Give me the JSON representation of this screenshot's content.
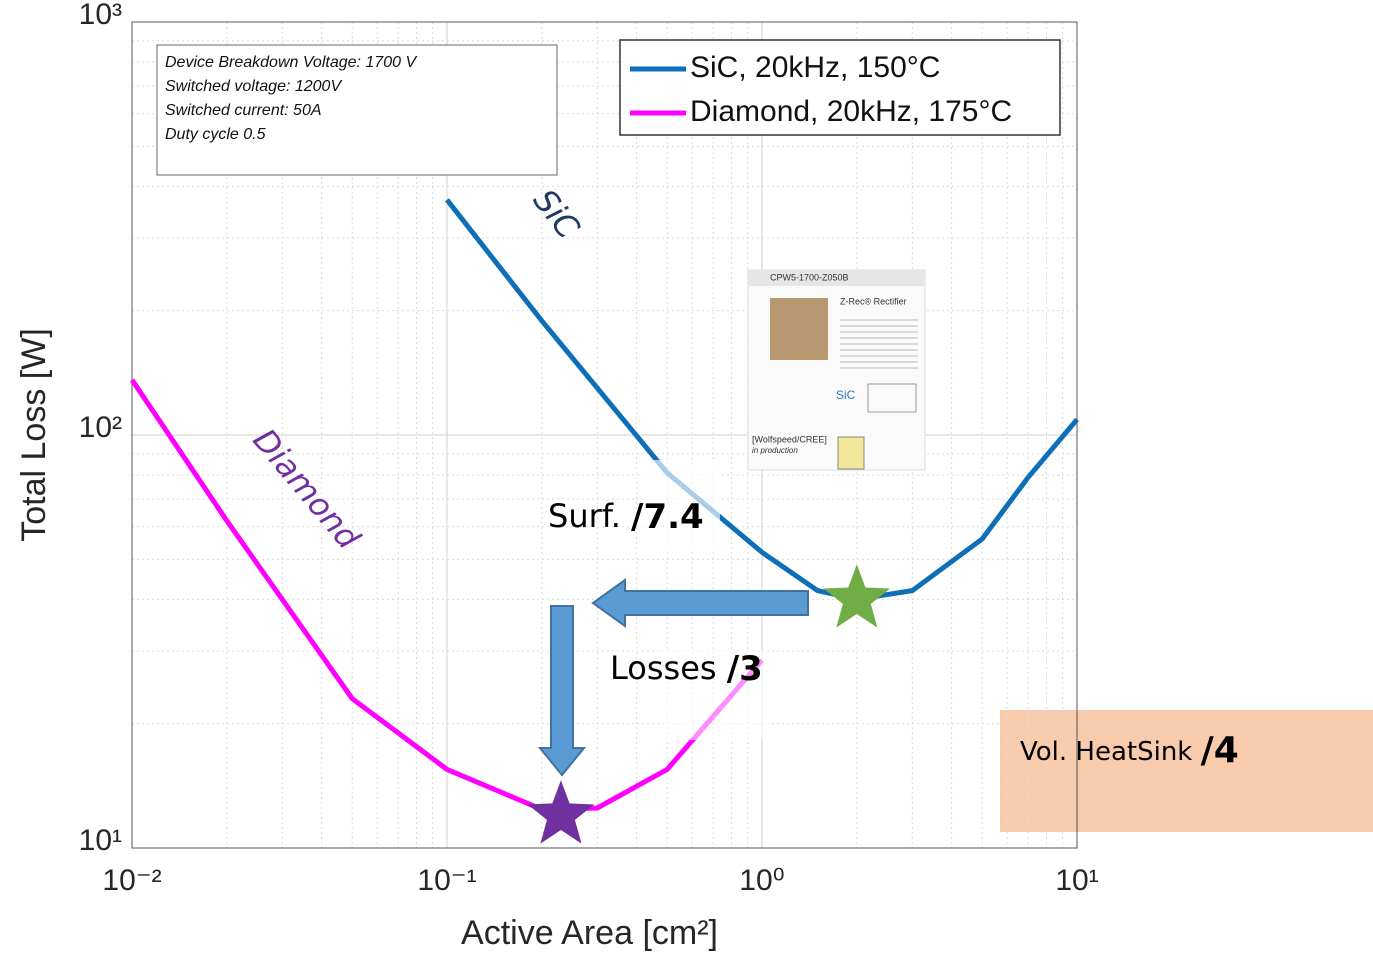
{
  "chart_data": {
    "type": "line",
    "xlabel": "Active Area [cm²]",
    "ylabel": "Total Loss [W]",
    "log_x": true,
    "log_y": true,
    "grid": true,
    "xlim": [
      0.01,
      10
    ],
    "ylim": [
      10,
      1000
    ],
    "xticks": [
      {
        "value": 0.01,
        "label": "10⁻²"
      },
      {
        "value": 0.1,
        "label": "10⁻¹"
      },
      {
        "value": 1,
        "label": "10⁰"
      },
      {
        "value": 10,
        "label": "10¹"
      }
    ],
    "yticks": [
      {
        "value": 10,
        "label": "10¹"
      },
      {
        "value": 100,
        "label": "10²"
      },
      {
        "value": 1000,
        "label": "10³"
      }
    ],
    "legend_position": "upper right",
    "series": [
      {
        "name": "SiC, 20kHz, 150°C",
        "color": "#0e6eb8",
        "x": [
          0.1,
          0.2,
          0.5,
          1,
          1.5,
          2,
          3,
          5,
          7,
          10
        ],
        "values": [
          371,
          189,
          81,
          52,
          42,
          40,
          42,
          56,
          79,
          109
        ]
      },
      {
        "name": "Diamond, 20kHz, 175°C",
        "color": "#ff00ff",
        "x": [
          0.01,
          0.02,
          0.05,
          0.1,
          0.2,
          0.3,
          0.5,
          1
        ],
        "values": [
          136,
          62,
          23,
          15.5,
          12.4,
          12.5,
          15.5,
          28.5
        ]
      }
    ],
    "markers": [
      {
        "x": 2,
        "y": 40,
        "color": "#70ad47"
      },
      {
        "x": 0.23,
        "y": 12,
        "color": "#7030a0"
      }
    ],
    "info_box": [
      "Device Breakdown Voltage: 1700 V",
      "Switched voltage: 1200V",
      "Switched current: 50A",
      "Duty cycle 0.5"
    ],
    "curve_labels": [
      "SiC",
      "Diamond"
    ],
    "annotations": [
      {
        "text": "Surf. ",
        "emph": "/7.4"
      },
      {
        "text": "Losses ",
        "emph": "/3"
      },
      {
        "text": "Vol. HeatSink ",
        "emph": "/4"
      }
    ],
    "inset": {
      "part": "CPW5-1700-Z050B",
      "title": "Z-Rec® Rectifier",
      "material": "SiC",
      "source": "[Wolfspeed/CREE]",
      "status": "in production"
    }
  }
}
